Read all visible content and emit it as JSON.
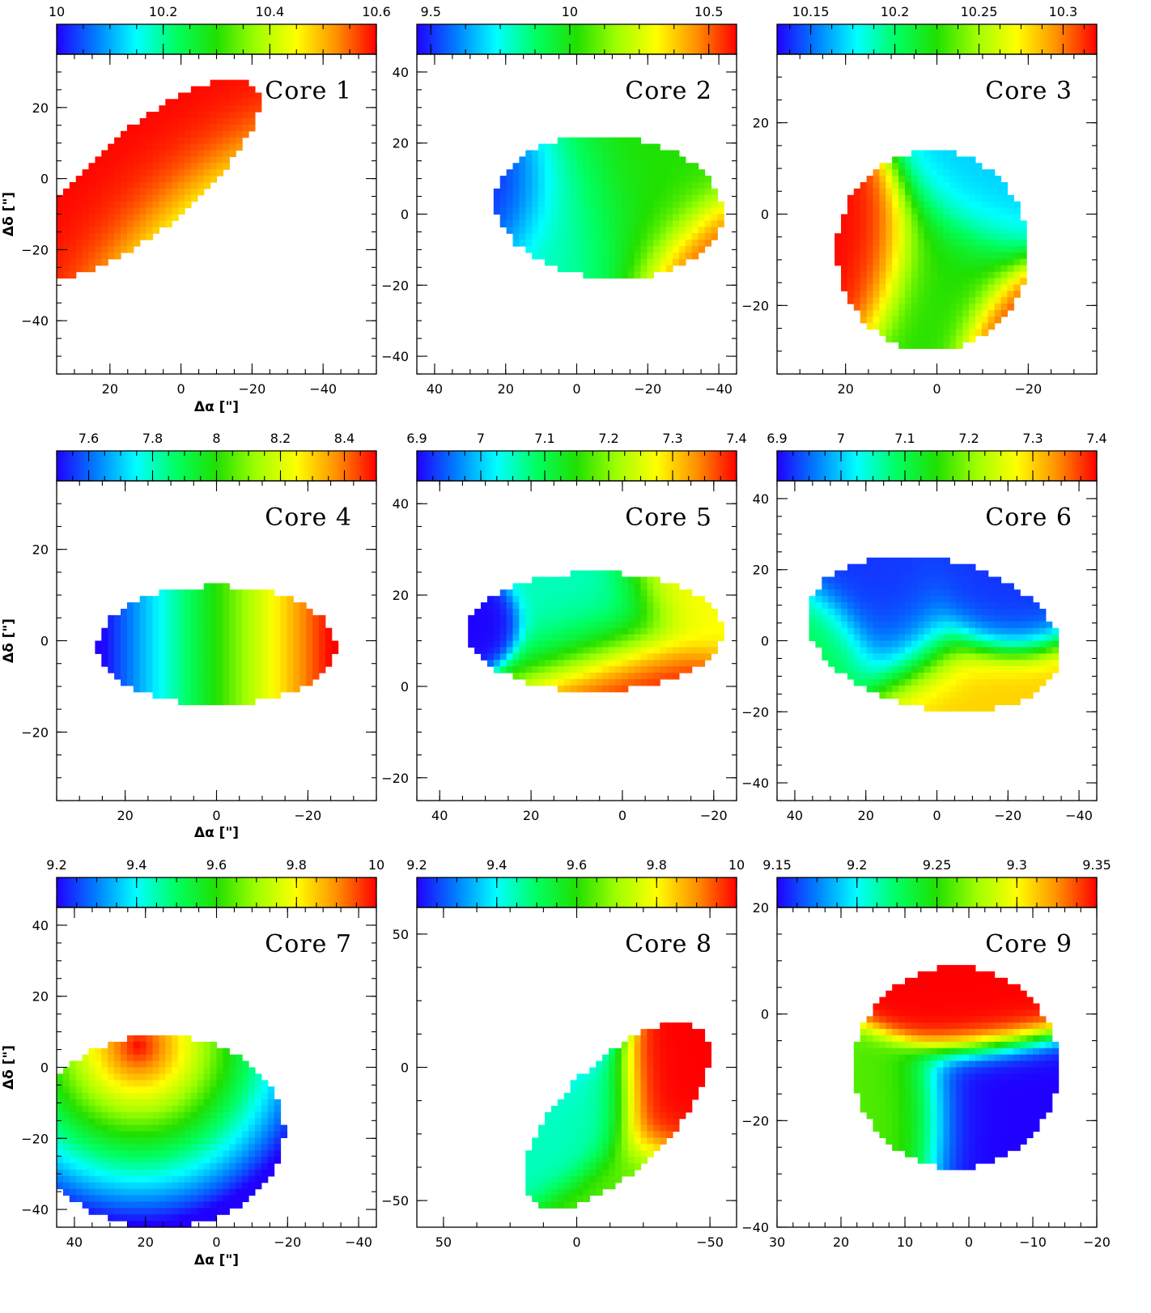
{
  "figure": {
    "xlabel": "Δα [\"]",
    "ylabel": "Δδ [\"]",
    "colormap": [
      "#2000ff",
      "#0080ff",
      "#00ffff",
      "#00ff60",
      "#20e000",
      "#a0ff00",
      "#ffff00",
      "#ff9000",
      "#ff0000"
    ]
  },
  "chart_data": [
    {
      "type": "heatmap",
      "title": "Core 1",
      "colorbar": {
        "range": [
          10.0,
          10.6
        ],
        "ticks": [
          "10",
          "10.2",
          "10.4",
          "10.6"
        ],
        "tick_values": [
          10.0,
          10.2,
          10.4,
          10.6
        ]
      },
      "xlim": [
        35,
        -55
      ],
      "ylim": [
        -55,
        35
      ],
      "xticks": [
        20,
        0,
        -20,
        -40
      ],
      "xtick_labels": [
        "20",
        "0",
        "−20",
        "−40"
      ],
      "yticks": [
        20,
        0,
        -20,
        -40
      ],
      "ytick_labels": [
        "20",
        "0",
        "−20",
        "−40"
      ],
      "source": {
        "center": [
          10,
          0
        ],
        "size": [
          40,
          14
        ],
        "angle": -40
      },
      "blobs": [
        {
          "x": 5,
          "y": -3,
          "r": 20,
          "v": 1.0
        },
        {
          "x": -10,
          "y": -20,
          "r": 18,
          "v": 0.45
        },
        {
          "x": -30,
          "y": -38,
          "r": 20,
          "v": 0.25
        },
        {
          "x": -48,
          "y": -42,
          "r": 14,
          "v": 0.05
        }
      ]
    },
    {
      "type": "heatmap",
      "title": "Core 2",
      "colorbar": {
        "range": [
          9.45,
          10.6
        ],
        "ticks": [
          "9.5",
          "10",
          "10.5"
        ],
        "tick_values": [
          9.5,
          10.0,
          10.5
        ]
      },
      "xlim": [
        45,
        -45
      ],
      "ylim": [
        -45,
        45
      ],
      "xticks": [
        40,
        20,
        0,
        -20,
        -40
      ],
      "xtick_labels": [
        "40",
        "20",
        "0",
        "−20",
        "−40"
      ],
      "yticks": [
        40,
        20,
        0,
        -20,
        -40
      ],
      "ytick_labels": [
        "40",
        "20",
        "0",
        "−20",
        "−40"
      ],
      "source": {
        "center": [
          -9,
          2
        ],
        "size": [
          32,
          20
        ],
        "angle": 5
      },
      "blobs": [
        {
          "x": 22,
          "y": 5,
          "r": 12,
          "v": 0.0
        },
        {
          "x": 5,
          "y": 0,
          "r": 16,
          "v": 0.3
        },
        {
          "x": -20,
          "y": 5,
          "r": 18,
          "v": 0.5
        },
        {
          "x": -40,
          "y": -15,
          "r": 14,
          "v": 1.0
        }
      ]
    },
    {
      "type": "heatmap",
      "title": "Core 3",
      "colorbar": {
        "range": [
          10.13,
          10.32
        ],
        "ticks": [
          "10.15",
          "10.2",
          "10.25",
          "10.3"
        ],
        "tick_values": [
          10.15,
          10.2,
          10.25,
          10.3
        ]
      },
      "xlim": [
        35,
        -35
      ],
      "ylim": [
        -35,
        35
      ],
      "xticks": [
        20,
        0,
        -20
      ],
      "xtick_labels": [
        "20",
        "0",
        "−20"
      ],
      "yticks": [
        20,
        0,
        -20
      ],
      "ytick_labels": [
        "20",
        "0",
        "−20"
      ],
      "source": {
        "center": [
          1,
          -8
        ],
        "size": [
          21,
          22
        ],
        "angle": 0
      },
      "blobs": [
        {
          "x": 18,
          "y": -8,
          "r": 10,
          "v": 1.0
        },
        {
          "x": -10,
          "y": 4,
          "r": 10,
          "v": 0.2
        },
        {
          "x": -20,
          "y": -25,
          "r": 9,
          "v": 1.0
        },
        {
          "x": -2,
          "y": -12,
          "r": 12,
          "v": 0.5
        }
      ]
    },
    {
      "type": "heatmap",
      "title": "Core 4",
      "colorbar": {
        "range": [
          7.5,
          8.5
        ],
        "ticks": [
          "7.6",
          "7.8",
          "8",
          "8.2",
          "8.4"
        ],
        "tick_values": [
          7.6,
          7.8,
          8.0,
          8.2,
          8.4
        ]
      },
      "xlim": [
        35,
        -35
      ],
      "ylim": [
        -35,
        35
      ],
      "xticks": [
        20,
        0,
        -20
      ],
      "xtick_labels": [
        "20",
        "0",
        "−20"
      ],
      "yticks": [
        20,
        0,
        -20
      ],
      "ytick_labels": [
        "20",
        "0",
        "−20"
      ],
      "source": {
        "center": [
          0,
          -1
        ],
        "size": [
          26,
          13
        ],
        "angle": 0
      },
      "gradient": {
        "type": "linear",
        "axis": "x",
        "from": 25,
        "to": -25
      }
    },
    {
      "type": "heatmap",
      "title": "Core 5",
      "colorbar": {
        "range": [
          6.9,
          7.4
        ],
        "ticks": [
          "6.9",
          "7",
          "7.1",
          "7.2",
          "7.3",
          "7.4"
        ],
        "tick_values": [
          6.9,
          7.0,
          7.1,
          7.2,
          7.3,
          7.4
        ]
      },
      "xlim": [
        45,
        -25
      ],
      "ylim": [
        -25,
        45
      ],
      "xticks": [
        40,
        20,
        0,
        -20
      ],
      "xtick_labels": [
        "40",
        "20",
        "0",
        "−20"
      ],
      "yticks": [
        40,
        20,
        0,
        -20
      ],
      "ytick_labels": [
        "40",
        "20",
        "0",
        "−20"
      ],
      "source": {
        "center": [
          6,
          12
        ],
        "size": [
          28,
          13
        ],
        "angle": 0
      },
      "blobs": [
        {
          "x": 6,
          "y": 16,
          "r": 12,
          "v": 0.3
        },
        {
          "x": 30,
          "y": 14,
          "r": 5,
          "v": 0.0
        },
        {
          "x": 0,
          "y": -2,
          "r": 12,
          "v": 1.0
        },
        {
          "x": -14,
          "y": 24,
          "r": 10,
          "v": 0.75
        }
      ]
    },
    {
      "type": "heatmap",
      "title": "Core 6",
      "colorbar": {
        "range": [
          6.9,
          7.4
        ],
        "ticks": [
          "6.9",
          "7",
          "7.1",
          "7.2",
          "7.3",
          "7.4"
        ],
        "tick_values": [
          6.9,
          7.0,
          7.1,
          7.2,
          7.3,
          7.4
        ]
      },
      "xlim": [
        45,
        -45
      ],
      "ylim": [
        -45,
        45
      ],
      "xticks": [
        40,
        20,
        0,
        -20,
        -40
      ],
      "xtick_labels": [
        "40",
        "20",
        "0",
        "−20",
        "−40"
      ],
      "yticks": [
        40,
        20,
        0,
        -20,
        -40
      ],
      "ytick_labels": [
        "40",
        "20",
        "0",
        "−20",
        "−40"
      ],
      "source": {
        "center": [
          1,
          2
        ],
        "size": [
          36,
          21
        ],
        "angle": 12
      },
      "blobs": [
        {
          "x": 12,
          "y": 3,
          "r": 13,
          "v": 0.05
        },
        {
          "x": -14,
          "y": 11,
          "r": 10,
          "v": 0.05
        },
        {
          "x": -2,
          "y": -18,
          "r": 16,
          "v": 0.8
        },
        {
          "x": 30,
          "y": -6,
          "r": 10,
          "v": 0.4
        }
      ]
    },
    {
      "type": "heatmap",
      "title": "Core 7",
      "colorbar": {
        "range": [
          9.2,
          10.0
        ],
        "ticks": [
          "9.2",
          "9.4",
          "9.6",
          "9.8",
          "10"
        ],
        "tick_values": [
          9.2,
          9.4,
          9.6,
          9.8,
          10.0
        ]
      },
      "xlim": [
        45,
        -45
      ],
      "ylim": [
        -45,
        45
      ],
      "xticks": [
        40,
        20,
        0,
        -20,
        -40
      ],
      "xtick_labels": [
        "40",
        "20",
        "0",
        "−20",
        "−40"
      ],
      "yticks": [
        40,
        20,
        0,
        -20,
        -40
      ],
      "ytick_labels": [
        "40",
        "20",
        "0",
        "−20",
        "−40"
      ],
      "source": {
        "center": [
          16,
          -18
        ],
        "size": [
          35,
          27
        ],
        "angle": 0
      },
      "gradient": {
        "type": "radial",
        "center": [
          22,
          6
        ],
        "radius": 50,
        "inverted": true
      }
    },
    {
      "type": "heatmap",
      "title": "Core 8",
      "colorbar": {
        "range": [
          9.2,
          10.0
        ],
        "ticks": [
          "9.2",
          "9.4",
          "9.6",
          "9.8",
          "10"
        ],
        "tick_values": [
          9.2,
          9.4,
          9.6,
          9.8,
          10.0
        ]
      },
      "xlim": [
        60,
        -60
      ],
      "ylim": [
        -60,
        60
      ],
      "xticks": [
        50,
        0,
        -50
      ],
      "xtick_labels": [
        "50",
        "0",
        "−50"
      ],
      "yticks": [
        50,
        0,
        -50
      ],
      "ytick_labels": [
        "50",
        "0",
        "−50"
      ],
      "source": {
        "center": [
          -15,
          -18
        ],
        "size": [
          45,
          20
        ],
        "angle": -45
      },
      "blobs": [
        {
          "x": 15,
          "y": 15,
          "r": 16,
          "v": 0.0
        },
        {
          "x": 0,
          "y": -15,
          "r": 16,
          "v": 0.3
        },
        {
          "x": -40,
          "y": -15,
          "r": 18,
          "v": 1.0
        },
        {
          "x": -30,
          "y": -50,
          "r": 18,
          "v": 0.55
        }
      ]
    },
    {
      "type": "heatmap",
      "title": "Core 9",
      "colorbar": {
        "range": [
          9.15,
          9.35
        ],
        "ticks": [
          "9.15",
          "9.2",
          "9.25",
          "9.3",
          "9.35"
        ],
        "tick_values": [
          9.15,
          9.2,
          9.25,
          9.3,
          9.35
        ]
      },
      "xlim": [
        30,
        -20
      ],
      "ylim": [
        -40,
        20
      ],
      "xticks": [
        30,
        20,
        10,
        0,
        -10,
        -20
      ],
      "xtick_labels": [
        "30",
        "20",
        "10",
        "0",
        "−10",
        "−20"
      ],
      "yticks": [
        20,
        0,
        -20,
        -40
      ],
      "ytick_labels": [
        "20",
        "0",
        "−20",
        "−40"
      ],
      "source": {
        "center": [
          2,
          -10
        ],
        "size": [
          16,
          19
        ],
        "angle": 0
      },
      "blobs": [
        {
          "x": 0,
          "y": 6,
          "r": 8,
          "v": 1.0
        },
        {
          "x": -4,
          "y": -20,
          "r": 9,
          "v": 0.0
        },
        {
          "x": 14,
          "y": -20,
          "r": 8,
          "v": 0.55
        }
      ]
    }
  ]
}
